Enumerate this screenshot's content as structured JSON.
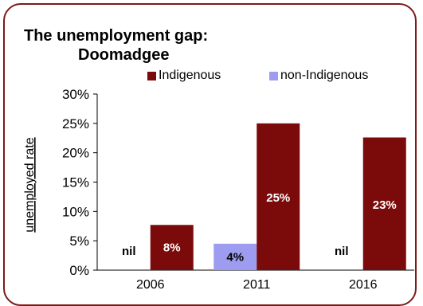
{
  "colors": {
    "indigenous": "#7b0a0a",
    "non_indigenous": "#9d9cf0",
    "frame": "#7b1a1a",
    "label_on_dark": "#ffffff",
    "label_on_light": "#000000"
  },
  "chart_data": {
    "type": "bar",
    "title_line1": "The unemployment gap:",
    "title_line2": "Doomadgee",
    "ylabel": "unemployed rate",
    "categories": [
      "2006",
      "2011",
      "2016"
    ],
    "yticks": [
      "0%",
      "5%",
      "10%",
      "15%",
      "20%",
      "25%",
      "30%"
    ],
    "ylim": [
      0,
      30
    ],
    "legend_position": "top",
    "series": [
      {
        "name": "non-Indigenous",
        "values": [
          0,
          4.5,
          0
        ],
        "labels": [
          "nil",
          "4%",
          "nil"
        ]
      },
      {
        "name": "Indigenous",
        "values": [
          7.7,
          25.0,
          22.6
        ],
        "labels": [
          "8%",
          "25%",
          "23%"
        ]
      }
    ]
  }
}
